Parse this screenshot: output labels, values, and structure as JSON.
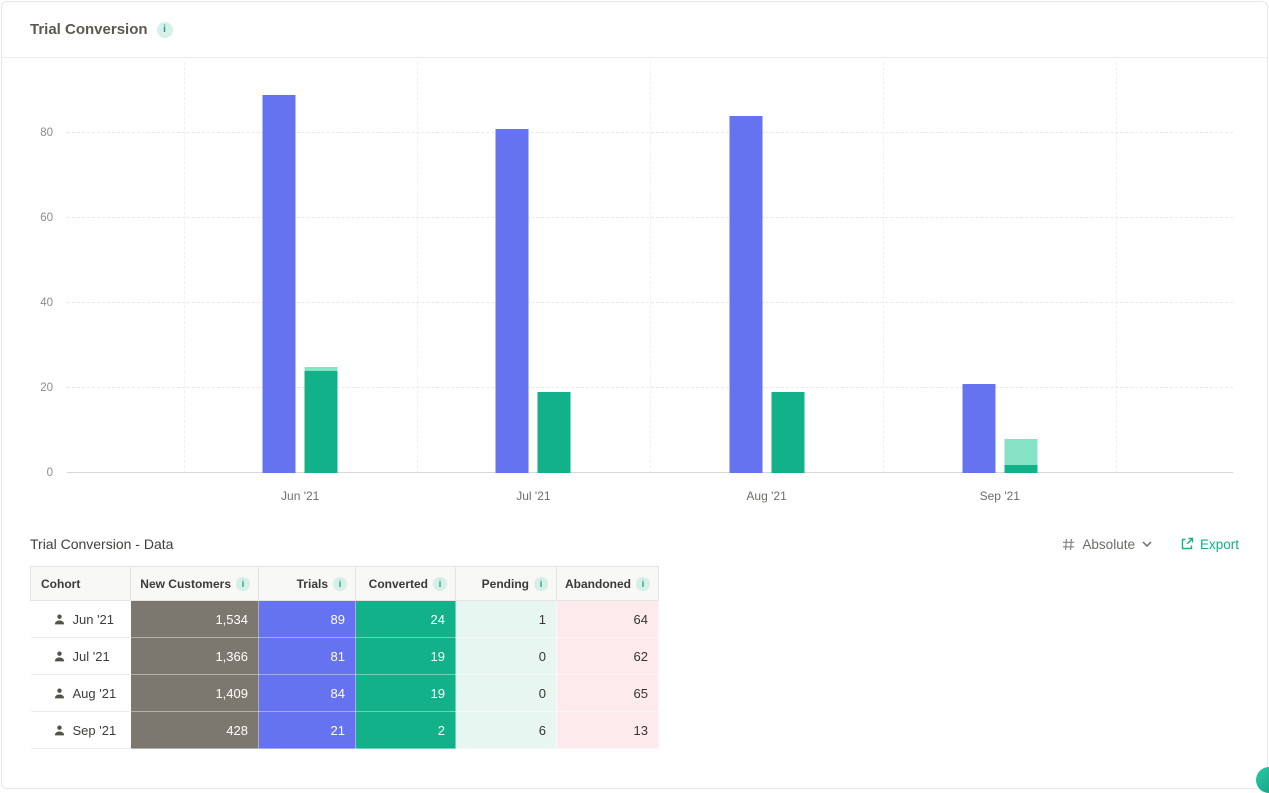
{
  "header": {
    "title": "Trial Conversion"
  },
  "icons": {
    "info_glyph": "i"
  },
  "chart_data": {
    "type": "bar",
    "title": "Trial Conversion",
    "categories": [
      "Jun '21",
      "Jul '21",
      "Aug '21",
      "Sep '21"
    ],
    "series": [
      {
        "name": "Trials",
        "values": [
          89,
          81,
          84,
          21
        ]
      },
      {
        "name": "Converted",
        "values": [
          24,
          19,
          19,
          2
        ]
      },
      {
        "name": "Pending",
        "values": [
          1,
          0,
          0,
          6
        ],
        "stacked_on": "Converted"
      }
    ],
    "yticks": [
      0,
      20,
      40,
      60,
      80
    ],
    "ylim": [
      0,
      96
    ],
    "xlabel": "",
    "ylabel": "",
    "grid": "horizontal-dashed",
    "legend": "none"
  },
  "table_section": {
    "title": "Trial Conversion - Data",
    "mode_label": "Absolute",
    "export_label": "Export"
  },
  "table": {
    "columns": [
      {
        "key": "cohort",
        "label": "Cohort",
        "info": false
      },
      {
        "key": "new_customers",
        "label": "New Customers",
        "info": true
      },
      {
        "key": "trials",
        "label": "Trials",
        "info": true
      },
      {
        "key": "converted",
        "label": "Converted",
        "info": true
      },
      {
        "key": "pending",
        "label": "Pending",
        "info": true
      },
      {
        "key": "abandoned",
        "label": "Abandoned",
        "info": true
      }
    ],
    "rows": [
      {
        "cohort": "Jun '21",
        "new_customers": "1,534",
        "trials": "89",
        "converted": "24",
        "pending": "1",
        "abandoned": "64"
      },
      {
        "cohort": "Jul '21",
        "new_customers": "1,366",
        "trials": "81",
        "converted": "19",
        "pending": "0",
        "abandoned": "62"
      },
      {
        "cohort": "Aug '21",
        "new_customers": "1,409",
        "trials": "84",
        "converted": "19",
        "pending": "0",
        "abandoned": "65"
      },
      {
        "cohort": "Sep '21",
        "new_customers": "428",
        "trials": "21",
        "converted": "2",
        "pending": "6",
        "abandoned": "13"
      }
    ]
  },
  "colors": {
    "accent": "#13b189",
    "trials": "#6673f0",
    "converted": "#12b189",
    "pending": "#85e2c4",
    "new-customers-cell": "#7c786f",
    "pending-cell": "#e7f6f0",
    "abandoned-cell": "#fdeaed"
  }
}
